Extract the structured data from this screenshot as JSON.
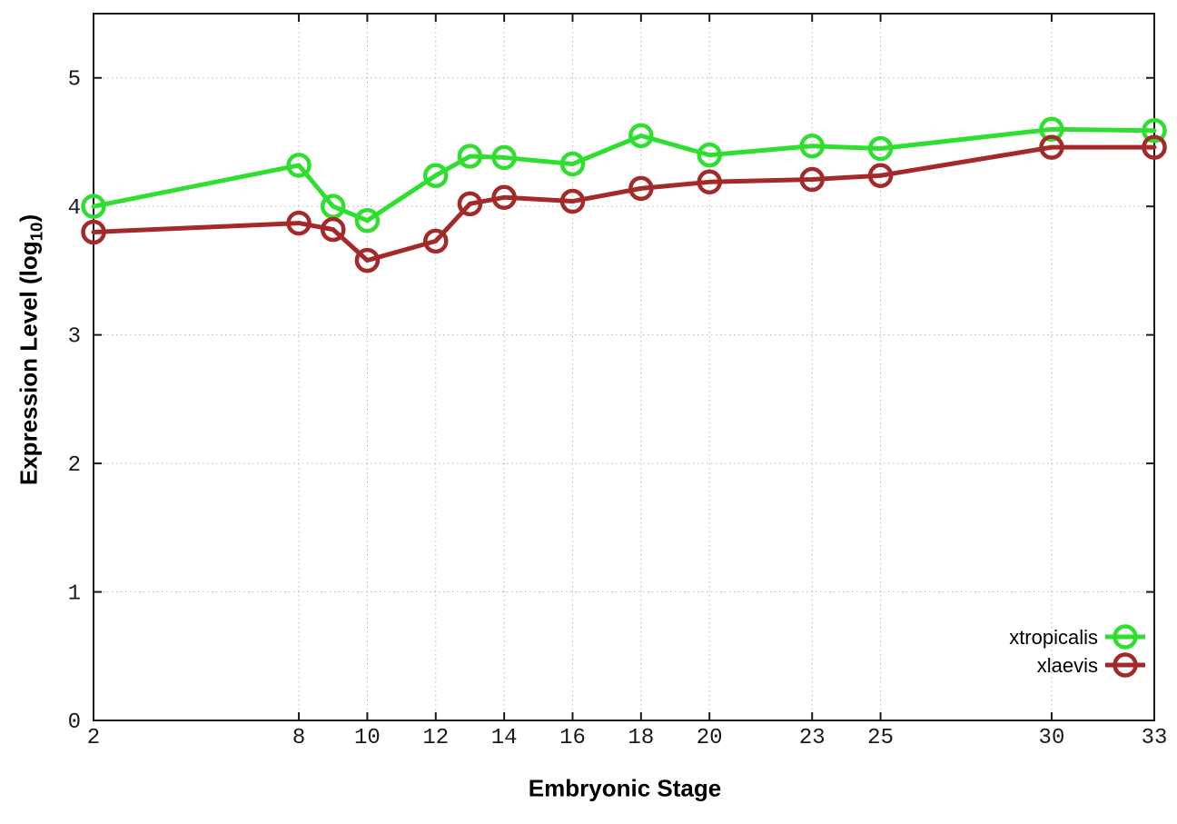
{
  "figure": {
    "background": "#ffffff",
    "frame_color": "#1a1a1a",
    "grid_color": "#b8b8b8",
    "tick_label_color": "#1a1a1a"
  },
  "axes": {
    "x_label": "Embryonic Stage",
    "y_label_prefix": "Expression Level (log",
    "y_label_sub": "10",
    "y_label_suffix": ")"
  },
  "legend": {
    "entries": [
      {
        "label": "xtropicalis",
        "color": "#2fdf2f"
      },
      {
        "label": "xlaevis",
        "color": "#a42a2a"
      }
    ]
  },
  "chart_data": {
    "type": "line",
    "title": "",
    "xlabel": "Embryonic Stage",
    "ylabel": "Expression Level (log10)",
    "xlim": [
      2,
      33
    ],
    "ylim": [
      0,
      5.5
    ],
    "x_ticks": [
      2,
      8,
      10,
      12,
      14,
      16,
      18,
      20,
      23,
      25,
      30,
      33
    ],
    "y_ticks": [
      0,
      1,
      2,
      3,
      4,
      5
    ],
    "grid": true,
    "legend_position": "inside-right-lower",
    "marker": "open-circle",
    "x": [
      2,
      8,
      9,
      10,
      12,
      13,
      14,
      16,
      18,
      20,
      23,
      25,
      30,
      33
    ],
    "series": [
      {
        "name": "xtropicalis",
        "color": "#2fdf2f",
        "values": [
          4.0,
          4.32,
          4.0,
          3.89,
          4.24,
          4.39,
          4.38,
          4.33,
          4.55,
          4.4,
          4.47,
          4.45,
          4.6,
          4.59
        ]
      },
      {
        "name": "xlaevis",
        "color": "#a42a2a",
        "values": [
          3.8,
          3.87,
          3.82,
          3.58,
          3.73,
          4.02,
          4.07,
          4.04,
          4.14,
          4.19,
          4.21,
          4.24,
          4.46,
          4.46
        ]
      }
    ]
  }
}
